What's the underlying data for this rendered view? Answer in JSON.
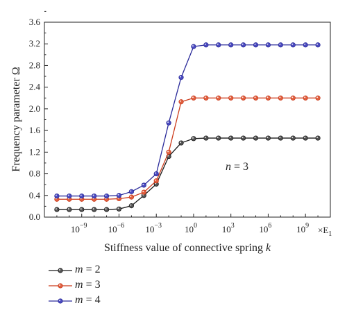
{
  "chart_data": {
    "type": "line",
    "xlabel": "Stiffness value of connective spring",
    "xlabel_var": "k",
    "x_unit_label": "×E",
    "x_unit_sub": "1",
    "ylabel": "Frequency parameter Ω",
    "x_scale": "log10",
    "x_exponents": [
      -11,
      -10,
      -9,
      -8,
      -7,
      -6,
      -5,
      -4,
      -3,
      -2,
      -1,
      0,
      1,
      2,
      3,
      4,
      5,
      6,
      7,
      8,
      9,
      10
    ],
    "x_tick_exponents": [
      -9,
      -6,
      -3,
      0,
      3,
      6,
      9
    ],
    "x_tick_labels": [
      "10",
      "10",
      "10",
      "10",
      "10",
      "10",
      "10"
    ],
    "x_tick_superscripts": [
      "−9",
      "−6",
      "−3",
      "0",
      "3",
      "6",
      "9"
    ],
    "xlim_exponent": [
      -12,
      11
    ],
    "ylim": [
      0,
      3.6
    ],
    "y_ticks": [
      "0.0",
      "0.4",
      "0.8",
      "1.2",
      "1.6",
      "2.0",
      "2.4",
      "2.8",
      "3.2",
      "3.6"
    ],
    "annotation": {
      "var": "n",
      "text": " = 3"
    },
    "legend_position": "below",
    "series": [
      {
        "name": "m = 2",
        "var": "m",
        "num": " = 2",
        "color": "#1a1a1a",
        "marker_fill": "#555555",
        "values": [
          0.14,
          0.14,
          0.14,
          0.14,
          0.14,
          0.15,
          0.21,
          0.4,
          0.61,
          1.12,
          1.37,
          1.45,
          1.46,
          1.46,
          1.46,
          1.46,
          1.46,
          1.46,
          1.46,
          1.46,
          1.46,
          1.46
        ]
      },
      {
        "name": "m = 3",
        "var": "m",
        "num": " = 3",
        "color": "#cc3a1a",
        "marker_fill": "#e06040",
        "values": [
          0.33,
          0.33,
          0.33,
          0.33,
          0.33,
          0.34,
          0.37,
          0.46,
          0.67,
          1.2,
          2.13,
          2.2,
          2.2,
          2.2,
          2.2,
          2.2,
          2.2,
          2.2,
          2.2,
          2.2,
          2.2,
          2.2
        ]
      },
      {
        "name": "m = 4",
        "var": "m",
        "num": " = 4",
        "color": "#2a2a9a",
        "marker_fill": "#4a4ac0",
        "values": [
          0.39,
          0.39,
          0.39,
          0.39,
          0.39,
          0.4,
          0.47,
          0.59,
          0.8,
          1.74,
          2.58,
          3.15,
          3.18,
          3.18,
          3.18,
          3.18,
          3.18,
          3.18,
          3.18,
          3.18,
          3.18,
          3.18
        ]
      }
    ]
  }
}
